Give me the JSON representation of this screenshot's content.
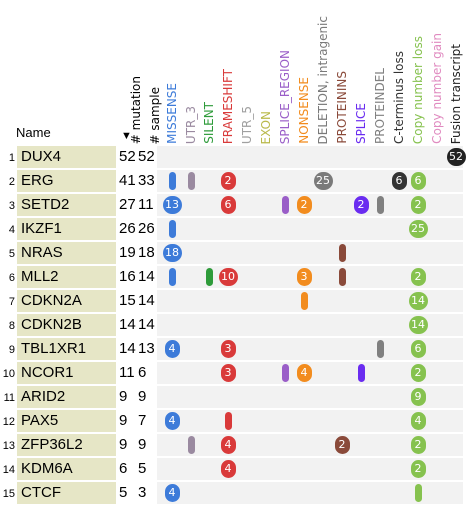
{
  "header": {
    "name_label": "Name",
    "sort_arrow": "▼",
    "columns": [
      {
        "label": "# mutation",
        "color": "#000000"
      },
      {
        "label": "# sample",
        "color": "#000000"
      },
      {
        "label": "MISSENSE",
        "color": "#3d7bd9"
      },
      {
        "label": "UTR_3",
        "color": "#9a8aa0"
      },
      {
        "label": "SILENT",
        "color": "#2e9b3a"
      },
      {
        "label": "FRAMESHIFT",
        "color": "#d93a3a"
      },
      {
        "label": "UTR_5",
        "color": "#a0a0a0"
      },
      {
        "label": "EXON",
        "color": "#b9b94a"
      },
      {
        "label": "SPLICE_REGION",
        "color": "#9a5ec8"
      },
      {
        "label": "NONSENSE",
        "color": "#f28c1e"
      },
      {
        "label": "DELETION, intragenic",
        "color": "#7a7a7a"
      },
      {
        "label": "PROTEININS",
        "color": "#8a4a3a"
      },
      {
        "label": "SPLICE",
        "color": "#6a2cf0"
      },
      {
        "label": "PROTEINDEL",
        "color": "#808080"
      },
      {
        "label": "C-terminus loss",
        "color": "#333333"
      },
      {
        "label": "Copy number loss",
        "color": "#86c24f"
      },
      {
        "label": "Copy number gain",
        "color": "#e08bc0"
      },
      {
        "label": "Fusion transcript",
        "color": "#222222"
      }
    ]
  },
  "rows": [
    {
      "index": "1",
      "name": "DUX4",
      "mutations": "52",
      "samples": "52",
      "marks": [
        {
          "col": 17,
          "type": "pill",
          "label": "52"
        }
      ]
    },
    {
      "index": "2",
      "name": "ERG",
      "mutations": "41",
      "samples": "33",
      "marks": [
        {
          "col": 2,
          "type": "bar"
        },
        {
          "col": 3,
          "type": "bar"
        },
        {
          "col": 5,
          "type": "pill",
          "label": "2"
        },
        {
          "col": 10,
          "type": "pill",
          "label": "25"
        },
        {
          "col": 14,
          "type": "pill",
          "label": "6"
        },
        {
          "col": 15,
          "type": "pill",
          "label": "6"
        }
      ]
    },
    {
      "index": "3",
      "name": "SETD2",
      "mutations": "27",
      "samples": "11",
      "marks": [
        {
          "col": 2,
          "type": "pill",
          "label": "13"
        },
        {
          "col": 5,
          "type": "pill",
          "label": "6"
        },
        {
          "col": 8,
          "type": "bar"
        },
        {
          "col": 9,
          "type": "pill",
          "label": "2"
        },
        {
          "col": 12,
          "type": "pill",
          "label": "2"
        },
        {
          "col": 13,
          "type": "bar"
        },
        {
          "col": 15,
          "type": "pill",
          "label": "2"
        }
      ]
    },
    {
      "index": "4",
      "name": "IKZF1",
      "mutations": "26",
      "samples": "26",
      "marks": [
        {
          "col": 2,
          "type": "bar"
        },
        {
          "col": 15,
          "type": "pill",
          "label": "25"
        }
      ]
    },
    {
      "index": "5",
      "name": "NRAS",
      "mutations": "19",
      "samples": "18",
      "marks": [
        {
          "col": 2,
          "type": "pill",
          "label": "18"
        },
        {
          "col": 11,
          "type": "bar"
        }
      ]
    },
    {
      "index": "6",
      "name": "MLL2",
      "mutations": "16",
      "samples": "14",
      "marks": [
        {
          "col": 2,
          "type": "bar"
        },
        {
          "col": 4,
          "type": "bar"
        },
        {
          "col": 5,
          "type": "pill",
          "label": "10"
        },
        {
          "col": 9,
          "type": "pill",
          "label": "3"
        },
        {
          "col": 11,
          "type": "bar"
        },
        {
          "col": 15,
          "type": "pill",
          "label": "2"
        }
      ]
    },
    {
      "index": "7",
      "name": "CDKN2A",
      "mutations": "15",
      "samples": "14",
      "marks": [
        {
          "col": 9,
          "type": "bar"
        },
        {
          "col": 15,
          "type": "pill",
          "label": "14"
        }
      ]
    },
    {
      "index": "8",
      "name": "CDKN2B",
      "mutations": "14",
      "samples": "14",
      "marks": [
        {
          "col": 15,
          "type": "pill",
          "label": "14"
        }
      ]
    },
    {
      "index": "9",
      "name": "TBL1XR1",
      "mutations": "14",
      "samples": "13",
      "marks": [
        {
          "col": 2,
          "type": "pill",
          "label": "4"
        },
        {
          "col": 5,
          "type": "pill",
          "label": "3"
        },
        {
          "col": 13,
          "type": "bar"
        },
        {
          "col": 15,
          "type": "pill",
          "label": "6"
        }
      ]
    },
    {
      "index": "10",
      "name": "NCOR1",
      "mutations": "11",
      "samples": "6",
      "marks": [
        {
          "col": 5,
          "type": "pill",
          "label": "3"
        },
        {
          "col": 8,
          "type": "bar"
        },
        {
          "col": 9,
          "type": "pill",
          "label": "4"
        },
        {
          "col": 12,
          "type": "bar"
        },
        {
          "col": 15,
          "type": "pill",
          "label": "2"
        }
      ]
    },
    {
      "index": "11",
      "name": "ARID2",
      "mutations": "9",
      "samples": "9",
      "marks": [
        {
          "col": 15,
          "type": "pill",
          "label": "9"
        }
      ]
    },
    {
      "index": "12",
      "name": "PAX5",
      "mutations": "9",
      "samples": "7",
      "marks": [
        {
          "col": 2,
          "type": "pill",
          "label": "4"
        },
        {
          "col": 5,
          "type": "bar"
        },
        {
          "col": 15,
          "type": "pill",
          "label": "4"
        }
      ]
    },
    {
      "index": "13",
      "name": "ZFP36L2",
      "mutations": "9",
      "samples": "9",
      "marks": [
        {
          "col": 3,
          "type": "bar"
        },
        {
          "col": 5,
          "type": "pill",
          "label": "4"
        },
        {
          "col": 11,
          "type": "pill",
          "label": "2"
        },
        {
          "col": 15,
          "type": "pill",
          "label": "2"
        }
      ]
    },
    {
      "index": "14",
      "name": "KDM6A",
      "mutations": "6",
      "samples": "5",
      "marks": [
        {
          "col": 5,
          "type": "pill",
          "label": "4"
        },
        {
          "col": 15,
          "type": "pill",
          "label": "2"
        }
      ]
    },
    {
      "index": "15",
      "name": "CTCF",
      "mutations": "5",
      "samples": "3",
      "marks": [
        {
          "col": 2,
          "type": "pill",
          "label": "4"
        },
        {
          "col": 15,
          "type": "bar"
        }
      ]
    }
  ]
}
